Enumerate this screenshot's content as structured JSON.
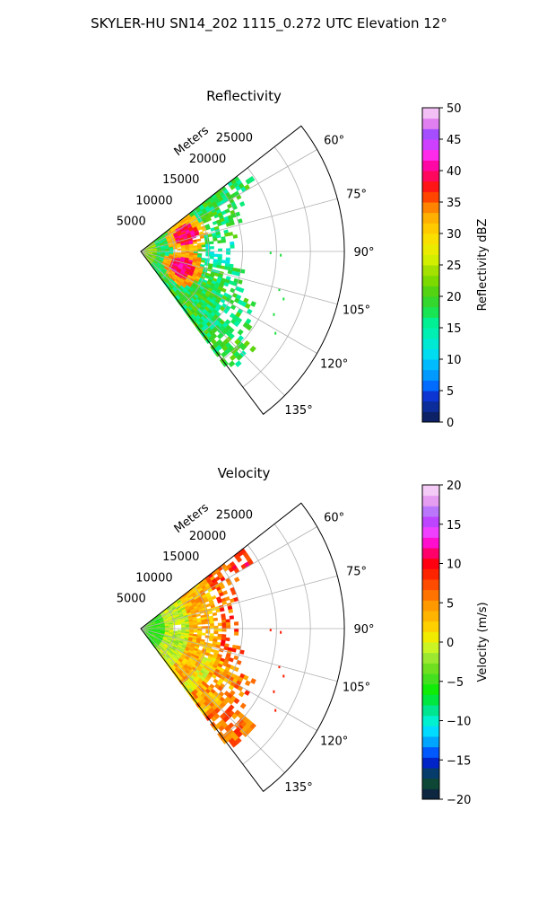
{
  "figure": {
    "suptitle": "SKYLER-HU  SN14_202  1115_0.272 UTC Elevation 12°"
  },
  "chart_data": [
    {
      "type": "heatmap",
      "subtype": "polar-sector (radar PPI)",
      "title": "Reflectivity",
      "radial_label": "Meters",
      "radial_ticks": [
        "5000",
        "10000",
        "15000",
        "20000",
        "25000"
      ],
      "angle_ticks": [
        "60°",
        "75°",
        "90°",
        "105°",
        "120°",
        "135°"
      ],
      "angle_range_deg": [
        52,
        143
      ],
      "r_max": 30000,
      "colorbar": {
        "label": "Reflectivity dBZ",
        "min": 0,
        "max": 50,
        "ticks": [
          "0",
          "5",
          "10",
          "15",
          "20",
          "25",
          "30",
          "35",
          "40",
          "45",
          "50"
        ]
      },
      "grid": true,
      "notes": "Echoes mostly 15-25 dBZ; maxima ~35-40 dBZ near 6000-9000 m at ~70° and ~110°"
    },
    {
      "type": "heatmap",
      "subtype": "polar-sector (radar PPI)",
      "title": "Velocity",
      "radial_label": "Meters",
      "radial_ticks": [
        "5000",
        "10000",
        "15000",
        "20000",
        "25000"
      ],
      "angle_ticks": [
        "60°",
        "75°",
        "90°",
        "105°",
        "120°",
        "135°"
      ],
      "angle_range_deg": [
        52,
        143
      ],
      "r_max": 30000,
      "colorbar": {
        "label": "Velocity (m/s)",
        "min": -20,
        "max": 20,
        "ticks": [
          "−20",
          "−15",
          "−10",
          "−5",
          "0",
          "5",
          "10",
          "15",
          "20"
        ]
      },
      "grid": true,
      "notes": "Near range ~-5 m/s, increasing outward to ~0-5 m/s, ~8-10 m/s beyond 15000 m"
    }
  ]
}
